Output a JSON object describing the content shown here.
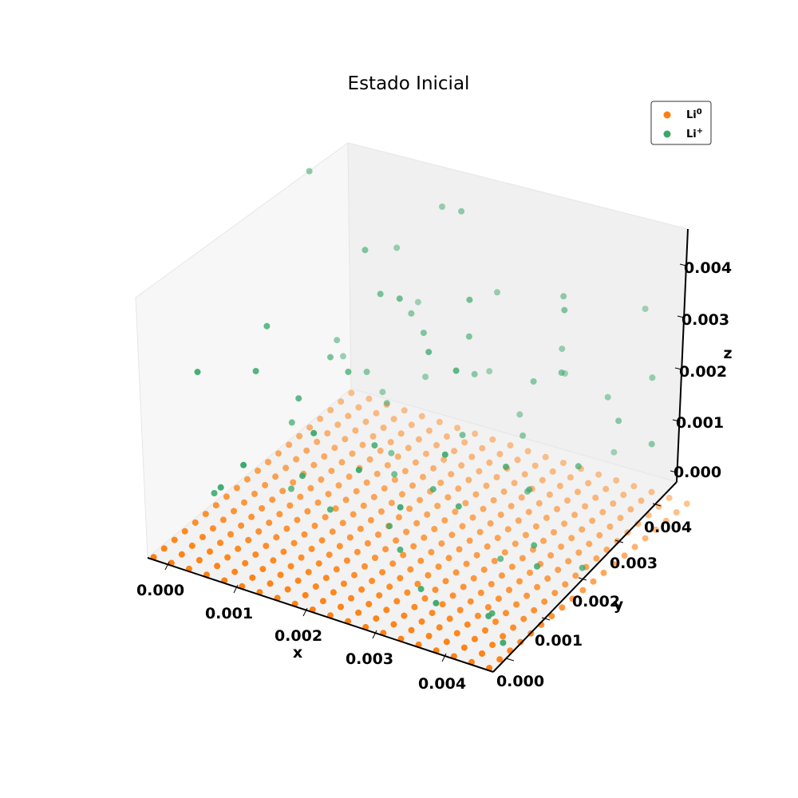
{
  "chart_data": {
    "type": "scatter",
    "title": "Estado Inicial",
    "xlabel": "x",
    "ylabel": "y",
    "zlabel": "z",
    "xlim": [
      0,
      0.0045
    ],
    "ylim": [
      0,
      0.0045
    ],
    "zlim": [
      0,
      0.0045
    ],
    "x_ticks": [
      "0.000",
      "0.001",
      "0.002",
      "0.003",
      "0.004"
    ],
    "y_ticks": [
      "0.000",
      "0.001",
      "0.002",
      "0.003",
      "0.004"
    ],
    "z_ticks": [
      "0.000",
      "0.001",
      "0.002",
      "0.003",
      "0.004"
    ],
    "grid": false,
    "legend_position": "top-right",
    "series": [
      {
        "name": "Li⁰",
        "legend_base": "Li",
        "legend_sup": "0",
        "color": "#ff7f0e",
        "grid_points": {
          "start": 5e-05,
          "step": 0.00023,
          "count": 20,
          "z": 0
        }
      },
      {
        "name": "Li⁺",
        "legend_base": "Li",
        "legend_sup": "+",
        "color": "#3aa86a",
        "points": [
          [
            0.0002,
            0.0035,
            0.0045
          ],
          [
            0.0004,
            0.0006,
            0.003
          ],
          [
            0.0006,
            0.0018,
            0.0031
          ],
          [
            0.001,
            0.004,
            0.0032
          ],
          [
            0.0012,
            0.003,
            0.0039
          ],
          [
            0.0015,
            0.0042,
            0.004
          ],
          [
            0.002,
            0.0038,
            0.0044
          ],
          [
            0.0008,
            0.0012,
            0.0028
          ],
          [
            0.0014,
            0.0022,
            0.0024
          ],
          [
            0.0018,
            0.0032,
            0.0026
          ],
          [
            0.0023,
            0.004,
            0.003
          ],
          [
            0.0026,
            0.002,
            0.0034
          ],
          [
            0.003,
            0.0042,
            0.0022
          ],
          [
            0.0033,
            0.0038,
            0.0035
          ],
          [
            0.0036,
            0.0032,
            0.0027
          ],
          [
            0.004,
            0.0044,
            0.0032
          ],
          [
            0.0043,
            0.004,
            0.0024
          ],
          [
            0.0045,
            0.0036,
            0.0016
          ],
          [
            0.0042,
            0.0025,
            0.0018
          ],
          [
            0.0038,
            0.0016,
            0.0022
          ],
          [
            0.0034,
            0.0012,
            0.0016
          ],
          [
            0.003,
            0.0006,
            0.0018
          ],
          [
            0.0026,
            0.0004,
            0.0024
          ],
          [
            0.0022,
            0.0014,
            0.002
          ],
          [
            0.0016,
            0.0008,
            0.0016
          ],
          [
            0.0012,
            0.0002,
            0.002
          ],
          [
            0.0007,
            0.0005,
            0.0012
          ],
          [
            0.0003,
            0.001,
            0.0006
          ],
          [
            0.0005,
            0.0024,
            0.001
          ],
          [
            0.0009,
            0.0034,
            0.0014
          ],
          [
            0.0013,
            0.004,
            0.0011
          ],
          [
            0.0019,
            0.0044,
            0.0012
          ],
          [
            0.0024,
            0.0042,
            0.0008
          ],
          [
            0.0028,
            0.0036,
            0.001
          ],
          [
            0.0032,
            0.003,
            0.0006
          ],
          [
            0.0036,
            0.0024,
            0.0012
          ],
          [
            0.004,
            0.0018,
            0.0008
          ],
          [
            0.0044,
            0.0012,
            0.001
          ],
          [
            0.0041,
            0.0006,
            0.0004
          ],
          [
            0.0036,
            0.0003,
            0.0006
          ],
          [
            0.0031,
            0.0008,
            0.0003
          ],
          [
            0.0026,
            0.0012,
            0.0005
          ],
          [
            0.0021,
            0.0018,
            0.0003
          ],
          [
            0.0017,
            0.0026,
            0.0005
          ],
          [
            0.0013,
            0.0032,
            0.0003
          ],
          [
            0.0009,
            0.0038,
            0.0006
          ],
          [
            0.0006,
            0.0042,
            0.0004
          ],
          [
            0.0011,
            0.0016,
            0.0022
          ],
          [
            0.0015,
            0.0028,
            0.0034
          ],
          [
            0.002,
            0.0024,
            0.0038
          ],
          [
            0.0024,
            0.0032,
            0.0028
          ],
          [
            0.0028,
            0.0026,
            0.004
          ],
          [
            0.0032,
            0.0016,
            0.0036
          ],
          [
            0.0035,
            0.0008,
            0.0028
          ],
          [
            0.0038,
            0.003,
            0.004
          ],
          [
            0.0042,
            0.0034,
            0.002
          ],
          [
            0.0045,
            0.002,
            0.0005
          ],
          [
            0.0029,
            0.0044,
            0.0016
          ],
          [
            0.0022,
            0.0036,
            0.0018
          ],
          [
            0.0017,
            0.0012,
            0.0008
          ],
          [
            0.0008,
            0.0028,
            0.002
          ],
          [
            0.0004,
            0.0036,
            0.0016
          ],
          [
            0.0001,
            0.0042,
            0.0008
          ],
          [
            0.0033,
            0.0022,
            0.0
          ],
          [
            0.0039,
            0.001,
            0.0001
          ],
          [
            0.0044,
            0.0004,
            0.0002
          ],
          [
            0.0027,
            0.0018,
            0.0012
          ],
          [
            0.0019,
            0.0006,
            0.0026
          ],
          [
            0.0014,
            0.0036,
            0.0025
          ],
          [
            0.0037,
            0.004,
            0.0018
          ],
          [
            0.0025,
            0.0028,
            0.0014
          ],
          [
            0.0031,
            0.0034,
            0.0022
          ],
          [
            0.001,
            0.0044,
            0.002
          ],
          [
            0.0007,
            0.002,
            0.0002
          ],
          [
            0.0035,
            0.0044,
            0.0005
          ]
        ]
      }
    ]
  }
}
